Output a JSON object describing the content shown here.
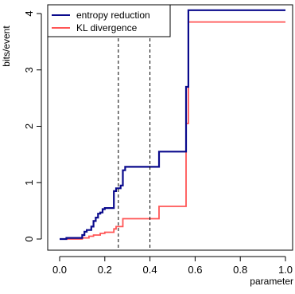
{
  "chart_data": {
    "type": "line",
    "step": true,
    "xlabel": "parameter",
    "ylabel": "bits/event",
    "xlim": [
      0,
      1
    ],
    "ylim": [
      0,
      4
    ],
    "x_ticks": [
      0.0,
      0.2,
      0.4,
      0.6,
      0.8,
      1.0
    ],
    "x_tick_labels": [
      "0.0",
      "0.2",
      "0.4",
      "0.6",
      "0.8",
      "1.0"
    ],
    "y_ticks": [
      0,
      1,
      2,
      3,
      4
    ],
    "y_tick_labels": [
      "0",
      "1",
      "2",
      "3",
      "4"
    ],
    "grid": false,
    "legend_position": "top-left",
    "vlines": [
      0.26,
      0.4
    ],
    "vline_style": "dashed",
    "series": [
      {
        "name": "entropy reduction",
        "color": "#0a0a8c",
        "x": [
          0.0,
          0.03,
          0.1,
          0.11,
          0.12,
          0.14,
          0.15,
          0.16,
          0.17,
          0.18,
          0.19,
          0.2,
          0.24,
          0.25,
          0.27,
          0.28,
          0.29,
          0.44,
          0.56,
          0.57,
          1.0
        ],
        "y": [
          0.0,
          0.02,
          0.07,
          0.13,
          0.16,
          0.22,
          0.32,
          0.38,
          0.45,
          0.47,
          0.53,
          0.55,
          0.85,
          0.9,
          0.95,
          1.22,
          1.28,
          1.55,
          2.7,
          4.06,
          4.06
        ]
      },
      {
        "name": "KL divergence",
        "color": "#ff5555",
        "x": [
          0.0,
          0.1,
          0.13,
          0.15,
          0.18,
          0.2,
          0.24,
          0.25,
          0.28,
          0.44,
          0.56,
          0.57,
          1.0
        ],
        "y": [
          0.0,
          0.02,
          0.05,
          0.07,
          0.1,
          0.12,
          0.18,
          0.22,
          0.36,
          0.58,
          2.05,
          3.85,
          3.85
        ]
      }
    ]
  }
}
